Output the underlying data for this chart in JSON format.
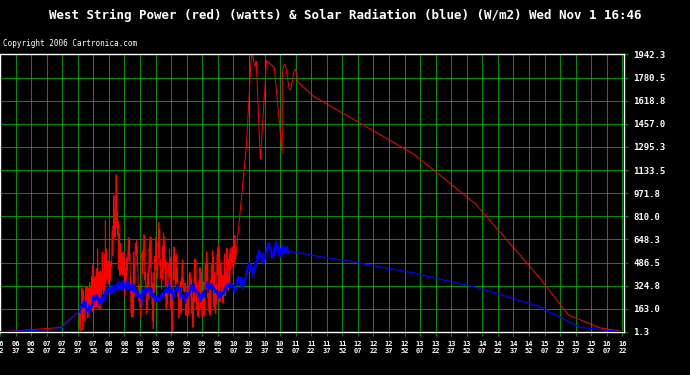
{
  "title": "West String Power (red) (watts) & Solar Radiation (blue) (W/m2) Wed Nov 1 16:46",
  "copyright": "Copyright 2006 Cartronica.com",
  "background_color": "#000000",
  "plot_bg_color": "#000000",
  "grid_color": "#00cc00",
  "border_color": "#ffffff",
  "title_color": "#ffffff",
  "ymin": 1.3,
  "ymax": 1942.3,
  "yticks": [
    1.3,
    163.0,
    324.8,
    486.5,
    648.3,
    810.0,
    971.8,
    1133.5,
    1295.3,
    1457.0,
    1618.8,
    1780.5,
    1942.3
  ],
  "x_start_min": 382,
  "x_end_min": 984,
  "x_tick_interval_min": 15,
  "fig_width": 6.9,
  "fig_height": 3.75,
  "dpi": 100
}
